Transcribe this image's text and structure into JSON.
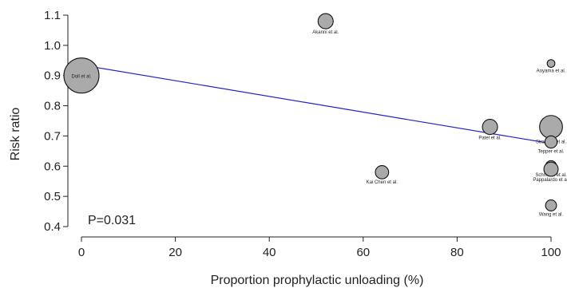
{
  "chart_data": {
    "type": "scatter",
    "xlabel": "Proportion prophylactic unloading (%)",
    "ylabel": "Risk ratio",
    "xlim": [
      0,
      100
    ],
    "ylim": [
      0.4,
      1.1
    ],
    "x_ticks": [
      0,
      20,
      40,
      60,
      80,
      100
    ],
    "y_ticks": [
      0.4,
      0.5,
      0.6,
      0.7,
      0.8,
      0.9,
      1.0,
      1.1
    ],
    "annotation": "P=0.031",
    "regression_line": {
      "x": [
        0,
        100
      ],
      "y": [
        0.935,
        0.675
      ],
      "color": "#2222cc"
    },
    "point_color": "#aaaaaa",
    "points": [
      {
        "label": "Doll et al.",
        "x": 0,
        "y": 0.9,
        "weight": 1.0
      },
      {
        "label": "Akanni et al.",
        "x": 52,
        "y": 1.08,
        "weight": 0.14
      },
      {
        "label": "Kai Chen et al.",
        "x": 64,
        "y": 0.58,
        "weight": 0.1
      },
      {
        "label": "Patel et al.",
        "x": 87,
        "y": 0.73,
        "weight": 0.14
      },
      {
        "label": "Aoyama et al.",
        "x": 100,
        "y": 0.94,
        "weight": 0.02
      },
      {
        "label": "Stradling et al.",
        "x": 100,
        "y": 0.73,
        "weight": 0.38
      },
      {
        "label": "Tepper et al.",
        "x": 100,
        "y": 0.68,
        "weight": 0.08
      },
      {
        "label": "Schmack et al.",
        "x": 100,
        "y": 0.6,
        "weight": 0.06
      },
      {
        "label": "Pappalardo et al.",
        "x": 100,
        "y": 0.59,
        "weight": 0.12
      },
      {
        "label": "Wang et al.",
        "x": 100,
        "y": 0.47,
        "weight": 0.06
      }
    ]
  }
}
